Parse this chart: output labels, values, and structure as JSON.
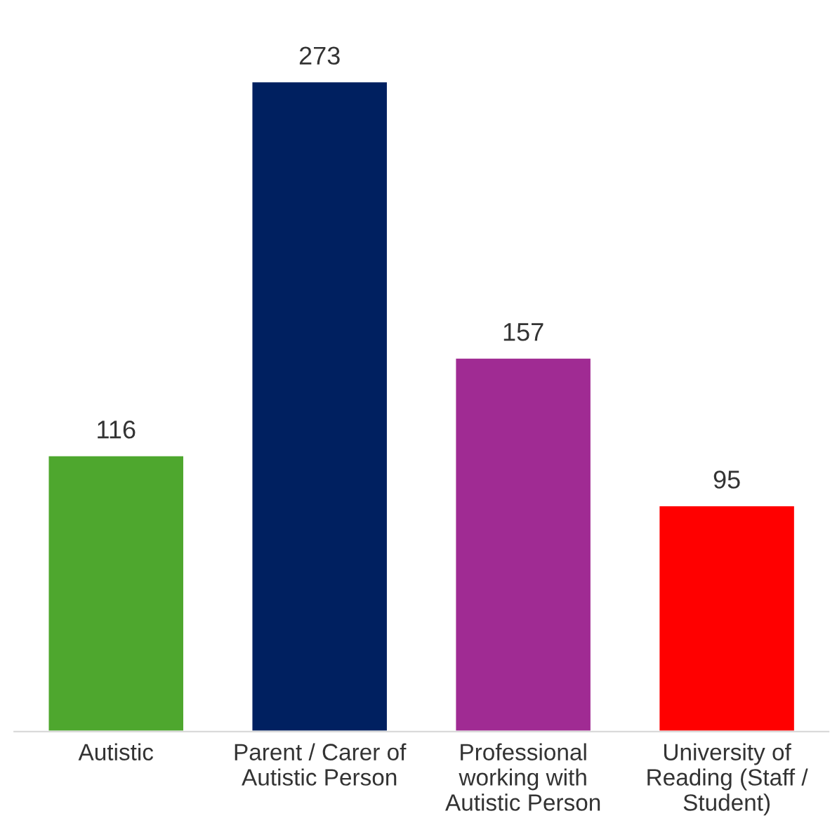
{
  "chart_data": {
    "type": "bar",
    "categories": [
      "Autistic",
      "Parent / Carer of\nAutistic Person",
      "Professional\nworking with\nAutistic Person",
      "University of\nReading (Staff /\nStudent)"
    ],
    "values": [
      116,
      273,
      157,
      95
    ],
    "colors": [
      "#4ea72e",
      "#002060",
      "#a02b93",
      "#ff0000"
    ],
    "data_labels": true,
    "grid": false,
    "legend": false
  }
}
